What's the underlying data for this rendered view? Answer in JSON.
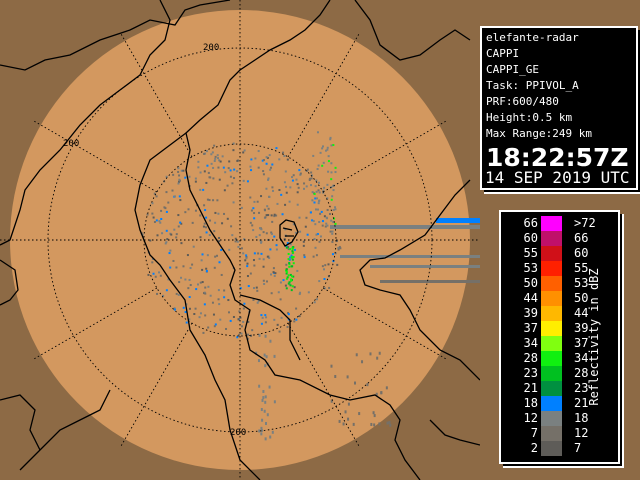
{
  "info": {
    "radar": "elefante-radar",
    "product": "CAPPI",
    "product_id": "CAPPI_GE",
    "task": "Task: PPIVOL_A",
    "prf": "PRF:600/480",
    "height": "Height:0.5 km",
    "max_range": "Max Range:249 km",
    "time": "18:22:57Z",
    "date": "14 SEP 2019 UTC"
  },
  "map": {
    "range_labels": [
      "200",
      "200",
      "200"
    ],
    "colors": {
      "in_range": "#d3985f",
      "out_of_range": "#8d6a45",
      "borders": "#000000"
    }
  },
  "legend": {
    "unit": "Reflectivity in dBZ",
    "rows": [
      {
        "lo": "66",
        "hi": ">72",
        "color": "#ff00ff"
      },
      {
        "lo": "60",
        "hi": "66",
        "color": "#c0106a"
      },
      {
        "lo": "55",
        "hi": "60",
        "color": "#d01018"
      },
      {
        "lo": "53",
        "hi": "55",
        "color": "#ff2000"
      },
      {
        "lo": "50",
        "hi": "53",
        "color": "#ff6000"
      },
      {
        "lo": "44",
        "hi": "50",
        "color": "#ff9000"
      },
      {
        "lo": "39",
        "hi": "44",
        "color": "#ffb800"
      },
      {
        "lo": "37",
        "hi": "39",
        "color": "#ffee00"
      },
      {
        "lo": "34",
        "hi": "37",
        "color": "#80ff10"
      },
      {
        "lo": "28",
        "hi": "34",
        "color": "#10f010"
      },
      {
        "lo": "23",
        "hi": "28",
        "color": "#00c020"
      },
      {
        "lo": "21",
        "hi": "23",
        "color": "#009040"
      },
      {
        "lo": "18",
        "hi": "21",
        "color": "#0080ff"
      },
      {
        "lo": "12",
        "hi": "18",
        "color": "#7a8080"
      },
      {
        "lo": "7",
        "hi": "12",
        "color": "#757068"
      },
      {
        "lo": "2",
        "hi": "7",
        "color": "#5e5c58"
      }
    ]
  }
}
